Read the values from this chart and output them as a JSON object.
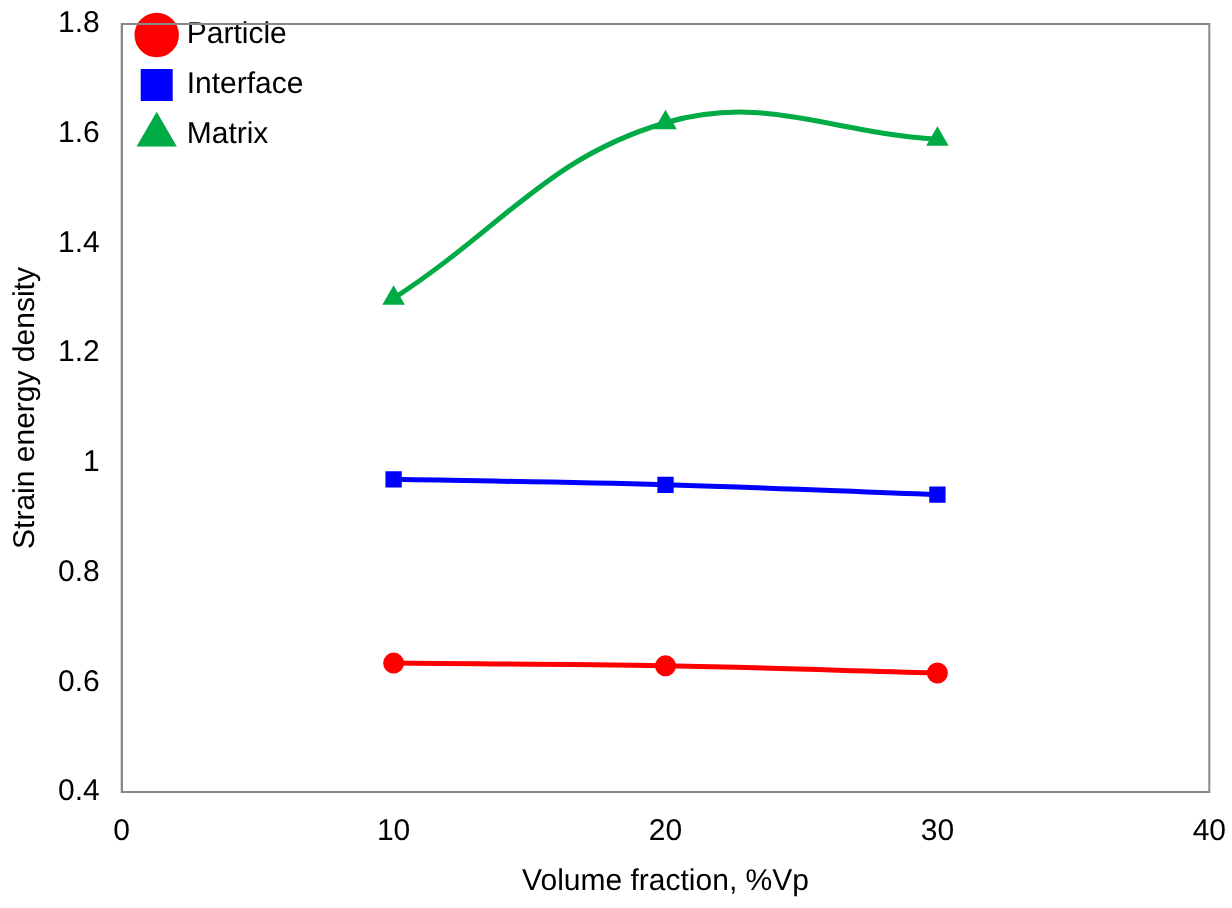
{
  "chart_data": {
    "type": "line",
    "xlabel": "Volume fraction, %Vp",
    "ylabel": "Strain energy density",
    "x": [
      10,
      20,
      30
    ],
    "series": [
      {
        "name": "Particle",
        "color": "#ff0000",
        "marker": "circle",
        "values": [
          0.635,
          0.63,
          0.617
        ]
      },
      {
        "name": "Interface",
        "color": "#0000ff",
        "marker": "square",
        "values": [
          0.97,
          0.96,
          0.942
        ]
      },
      {
        "name": "Matrix",
        "color": "#00aa44",
        "marker": "triangle",
        "values": [
          1.3,
          1.62,
          1.59
        ]
      }
    ],
    "xlim": [
      0,
      40
    ],
    "xticks": [
      0,
      10,
      20,
      30,
      40
    ],
    "ylim": [
      0.4,
      1.8
    ],
    "yticks": [
      0.4,
      0.6,
      0.8,
      1,
      1.2,
      1.4,
      1.6,
      1.8
    ],
    "grid": false,
    "legend": "top left"
  }
}
